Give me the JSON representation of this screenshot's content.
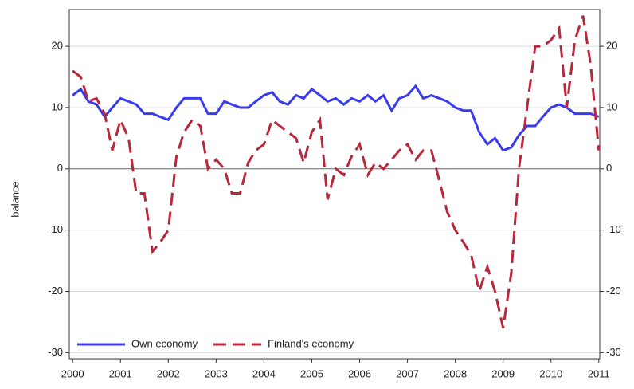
{
  "chart_data": {
    "type": "line",
    "ylabel": "balance",
    "x": [
      2000,
      2000.17,
      2000.33,
      2000.5,
      2000.67,
      2000.83,
      2001,
      2001.17,
      2001.33,
      2001.5,
      2001.67,
      2001.83,
      2002,
      2002.17,
      2002.33,
      2002.5,
      2002.67,
      2002.83,
      2003,
      2003.17,
      2003.33,
      2003.5,
      2003.67,
      2003.83,
      2004,
      2004.17,
      2004.33,
      2004.5,
      2004.67,
      2004.83,
      2005,
      2005.17,
      2005.33,
      2005.5,
      2005.67,
      2005.83,
      2006,
      2006.17,
      2006.33,
      2006.5,
      2006.67,
      2006.83,
      2007,
      2007.17,
      2007.33,
      2007.5,
      2007.67,
      2007.83,
      2008,
      2008.17,
      2008.33,
      2008.5,
      2008.67,
      2008.83,
      2009,
      2009.17,
      2009.33,
      2009.5,
      2009.67,
      2009.83,
      2010,
      2010.17,
      2010.33,
      2010.5,
      2010.67,
      2010.83,
      2011
    ],
    "series": [
      {
        "name": "Own economy",
        "color": "#3a3af0",
        "dash": false,
        "values": [
          12,
          13,
          11,
          10.5,
          8.5,
          10,
          11.5,
          11,
          10.5,
          9,
          9,
          8.5,
          8,
          10,
          11.5,
          11.5,
          11.5,
          9,
          9,
          11,
          10.5,
          10,
          10,
          11,
          12,
          12.5,
          11,
          10.5,
          12,
          11.5,
          13,
          12,
          11,
          11.5,
          10.5,
          11.5,
          11,
          12,
          11,
          12,
          9.5,
          11.5,
          12,
          13.5,
          11.5,
          12,
          11.5,
          11,
          10,
          9.5,
          9.5,
          6,
          4,
          5,
          3,
          3.5,
          5.5,
          7,
          7,
          8.5,
          10,
          10.5,
          10,
          9,
          9,
          9,
          8.5
        ]
      },
      {
        "name": "Finland's economy",
        "color": "#b8283a",
        "dash": true,
        "values": [
          16,
          15,
          11,
          11.5,
          9,
          3,
          8,
          5,
          -4,
          -4,
          -13.5,
          -12,
          -10,
          2,
          6,
          8,
          7,
          0,
          1.5,
          0,
          -4,
          -4,
          1,
          3,
          4,
          8,
          7,
          6,
          5,
          1,
          6,
          8,
          -5,
          0,
          -1,
          2,
          4,
          -1,
          1,
          0,
          1.5,
          3,
          4,
          1.5,
          3,
          3,
          -2,
          -7,
          -10,
          -12,
          -14,
          -20,
          -16,
          -20,
          -26,
          -17,
          0,
          10,
          20,
          20,
          21,
          23,
          10,
          21,
          25,
          17,
          3
        ]
      }
    ],
    "xlim": [
      1999.93,
      2011.02
    ],
    "xticks": [
      2000,
      2001,
      2002,
      2003,
      2004,
      2005,
      2006,
      2007,
      2008,
      2009,
      2010,
      2011
    ],
    "ylim": [
      -31,
      26
    ],
    "yticks": [
      -30,
      -20,
      -10,
      0,
      10,
      20
    ],
    "y2lim": [
      -31,
      26
    ],
    "y2ticks": [
      -30,
      -20,
      -10,
      0,
      10,
      20
    ],
    "grid": true,
    "legend": "lower left"
  }
}
